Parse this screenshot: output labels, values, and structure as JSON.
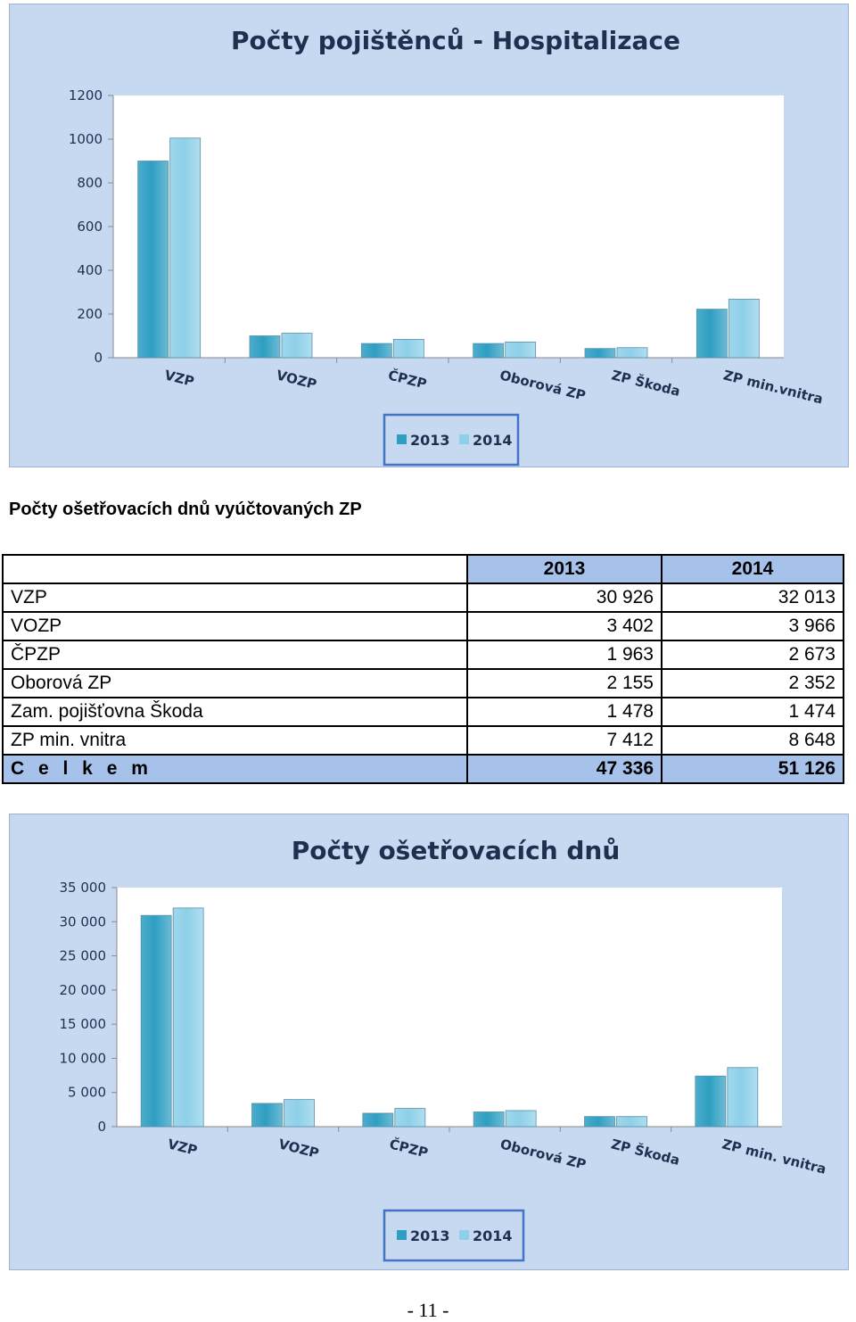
{
  "chart_data": [
    {
      "type": "bar",
      "title": "Počty pojištěnců - Hospitalizace",
      "categories": [
        "VZP",
        "VOZP",
        "ČPZP",
        "Oborová ZP",
        "ZP Škoda",
        "ZP min.vnitra"
      ],
      "series": [
        {
          "name": "2013",
          "values": [
            900,
            100,
            65,
            65,
            42,
            222
          ]
        },
        {
          "name": "2014",
          "values": [
            1005,
            112,
            84,
            72,
            46,
            268
          ]
        }
      ],
      "yticks": [
        "0",
        "200",
        "400",
        "600",
        "800",
        "1000",
        "1200"
      ],
      "ylim": [
        0,
        1200
      ],
      "legend": "bottom",
      "grid": false,
      "colors": {
        "2013": "#2e9ec2",
        "2014": "#8ed0e9"
      }
    },
    {
      "type": "bar",
      "title": "Počty ošetřovacích dnů",
      "categories": [
        "VZP",
        "VOZP",
        "ČPZP",
        "Oborová ZP",
        "ZP Škoda",
        "ZP min. vnitra"
      ],
      "series": [
        {
          "name": "2013",
          "values": [
            30926,
            3402,
            1963,
            2155,
            1478,
            7412
          ]
        },
        {
          "name": "2014",
          "values": [
            32013,
            3966,
            2673,
            2352,
            1474,
            8648
          ]
        }
      ],
      "yticks": [
        "0",
        "5 000",
        "10 000",
        "15 000",
        "20 000",
        "25 000",
        "30 000",
        "35 000"
      ],
      "ylim": [
        0,
        35000
      ],
      "legend": "bottom",
      "grid": false,
      "colors": {
        "2013": "#2e9ec2",
        "2014": "#8ed0e9"
      }
    }
  ],
  "table": {
    "title": "Počty ošetřovacích dnů vyúčtovaných ZP",
    "headers": [
      "",
      "2013",
      "2014"
    ],
    "rows": [
      {
        "name": "VZP",
        "v2013": "30 926",
        "v2014": "32 013"
      },
      {
        "name": "VOZP",
        "v2013": "3 402",
        "v2014": "3 966"
      },
      {
        "name": "ČPZP",
        "v2013": "1 963",
        "v2014": "2 673"
      },
      {
        "name": "Oborová ZP",
        "v2013": "2 155",
        "v2014": "2 352"
      },
      {
        "name": "Zam. pojišťovna Škoda",
        "v2013": "1 478",
        "v2014": "1 474"
      },
      {
        "name": "ZP min. vnitra",
        "v2013": "7 412",
        "v2014": "8 648"
      }
    ],
    "total": {
      "name": "C e l k e m",
      "v2013": "47 336",
      "v2014": "51 126"
    }
  },
  "page_number": "- 11 -"
}
